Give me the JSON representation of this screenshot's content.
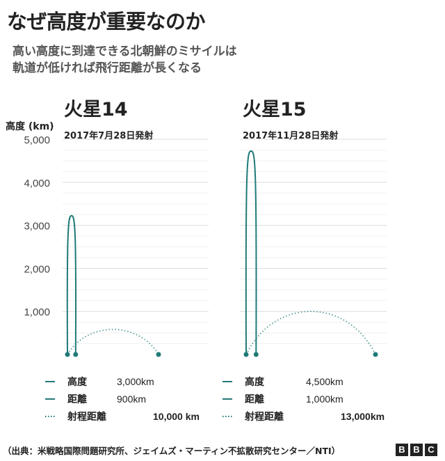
{
  "title": "なぜ高度が重要なのか",
  "subtitle_line1": "高い高度に到達できる北朝鮮のミサイルは",
  "subtitle_line2": "軌道が低ければ飛行距離が長くなる",
  "footer": "（出典：米戦略国際問題研究所、ジェイムズ・マーティン不拡散研究センター／NTI）",
  "logo_letters": [
    "B",
    "B",
    "C"
  ],
  "colors": {
    "accent": "#1f7a78",
    "grid": "#e4e4e4",
    "text": "#222222"
  },
  "chart_data": {
    "type": "line",
    "ylabel": "高度 (km)",
    "ylim": [
      0,
      5000
    ],
    "yticks": [
      1000,
      2000,
      3000,
      4000,
      5000
    ],
    "ytick_labels": [
      "1,000",
      "2,000",
      "3,000",
      "4,000",
      "5,000"
    ],
    "panels": [
      {
        "name": "火星14",
        "date": "2017年7月28日発射",
        "altitude_km": 3000,
        "distance_km": 900,
        "range_km": 10000,
        "legend": [
          {
            "label": "高度",
            "value": "3,000km",
            "style": "solid"
          },
          {
            "label": "距離",
            "value": "900km",
            "style": "solid"
          },
          {
            "label": "射程距離",
            "value": "10,000 km",
            "style": "dotted"
          }
        ]
      },
      {
        "name": "火星15",
        "date": "2017年11月28日発射",
        "altitude_km": 4500,
        "distance_km": 1000,
        "range_km": 13000,
        "legend": [
          {
            "label": "高度",
            "value": "4,500km",
            "style": "solid"
          },
          {
            "label": "距離",
            "value": "1,000km",
            "style": "solid"
          },
          {
            "label": "射程距離",
            "value": "13,000km",
            "style": "dotted"
          }
        ]
      }
    ]
  }
}
